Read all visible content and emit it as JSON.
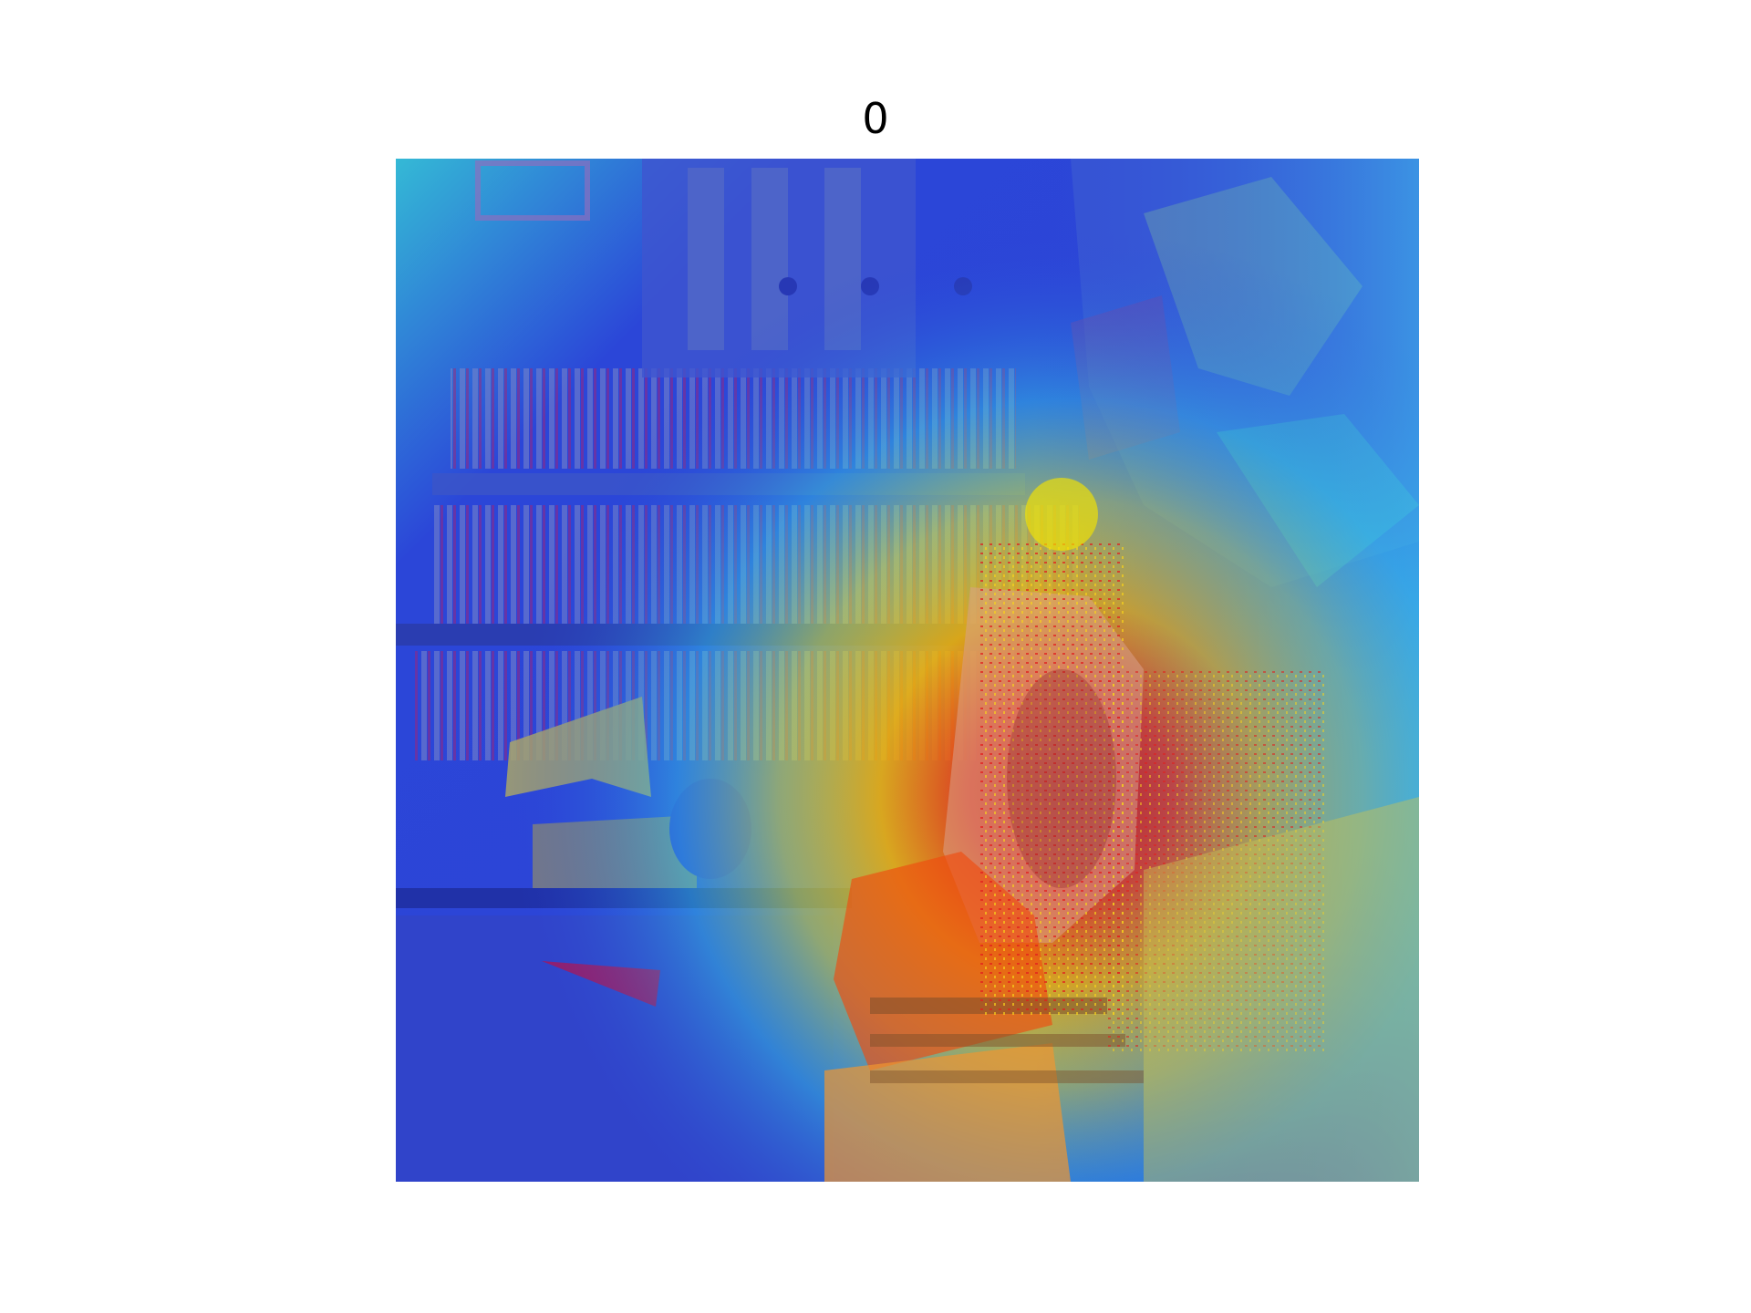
{
  "figure": {
    "title": "0"
  },
  "image": {
    "kind": "heatmap-overlay",
    "colormap": "jet",
    "colors": {
      "low": "#1e2fd8",
      "mid": "#2fd0e8",
      "high_mid": "#f2e600",
      "high": "#e81414"
    }
  }
}
